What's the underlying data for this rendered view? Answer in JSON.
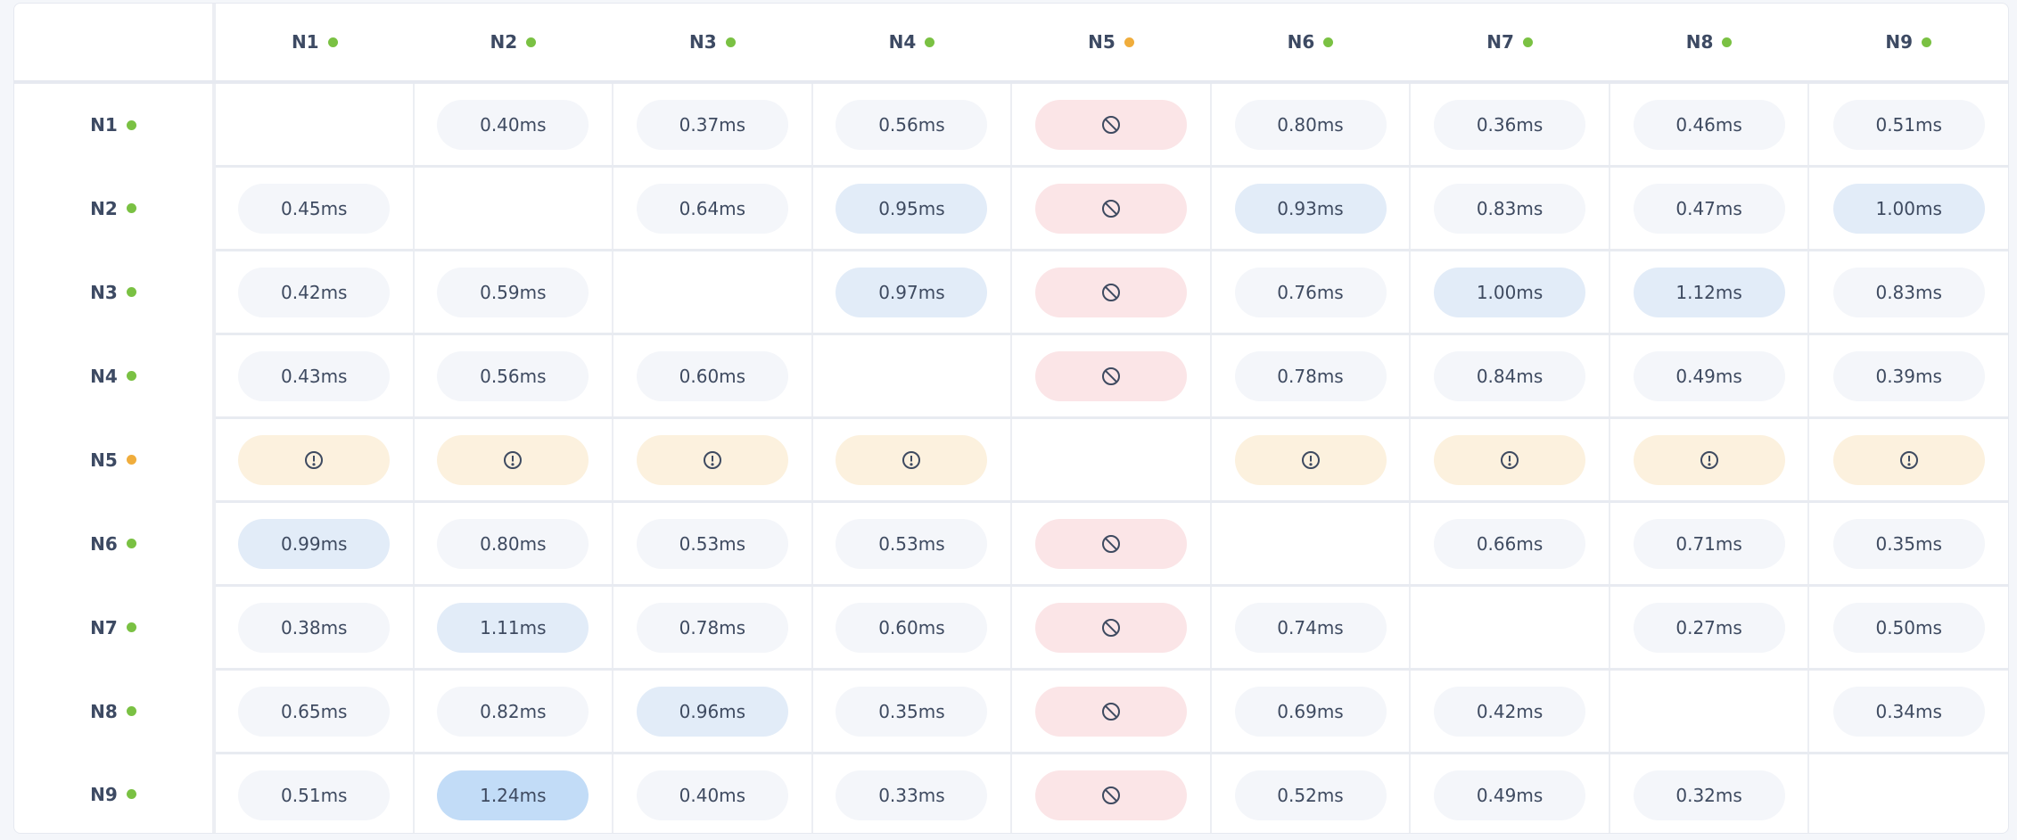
{
  "colors": {
    "online": "#7ac143",
    "degraded": "#f0ad3c",
    "normal_bg": "#f4f6fa",
    "elevated_bg": "#e2ecf8",
    "high_bg": "#c2dcf7",
    "blocked_bg": "#fbe5e7",
    "warning_bg": "#fcf1de"
  },
  "nodes": [
    {
      "label": "N1",
      "status": "online"
    },
    {
      "label": "N2",
      "status": "online"
    },
    {
      "label": "N3",
      "status": "online"
    },
    {
      "label": "N4",
      "status": "online"
    },
    {
      "label": "N5",
      "status": "degraded"
    },
    {
      "label": "N6",
      "status": "online"
    },
    {
      "label": "N7",
      "status": "online"
    },
    {
      "label": "N8",
      "status": "online"
    },
    {
      "label": "N9",
      "status": "online"
    }
  ],
  "matrix": [
    [
      {
        "s": "self"
      },
      {
        "v": "0.40ms",
        "s": "normal"
      },
      {
        "v": "0.37ms",
        "s": "normal"
      },
      {
        "v": "0.56ms",
        "s": "normal"
      },
      {
        "s": "blocked",
        "icon": "blocked-icon"
      },
      {
        "v": "0.80ms",
        "s": "normal"
      },
      {
        "v": "0.36ms",
        "s": "normal"
      },
      {
        "v": "0.46ms",
        "s": "normal"
      },
      {
        "v": "0.51ms",
        "s": "normal"
      }
    ],
    [
      {
        "v": "0.45ms",
        "s": "normal"
      },
      {
        "s": "self"
      },
      {
        "v": "0.64ms",
        "s": "normal"
      },
      {
        "v": "0.95ms",
        "s": "elevated"
      },
      {
        "s": "blocked",
        "icon": "blocked-icon"
      },
      {
        "v": "0.93ms",
        "s": "elevated"
      },
      {
        "v": "0.83ms",
        "s": "normal"
      },
      {
        "v": "0.47ms",
        "s": "normal"
      },
      {
        "v": "1.00ms",
        "s": "elevated"
      }
    ],
    [
      {
        "v": "0.42ms",
        "s": "normal"
      },
      {
        "v": "0.59ms",
        "s": "normal"
      },
      {
        "s": "self"
      },
      {
        "v": "0.97ms",
        "s": "elevated"
      },
      {
        "s": "blocked",
        "icon": "blocked-icon"
      },
      {
        "v": "0.76ms",
        "s": "normal"
      },
      {
        "v": "1.00ms",
        "s": "elevated"
      },
      {
        "v": "1.12ms",
        "s": "elevated"
      },
      {
        "v": "0.83ms",
        "s": "normal"
      }
    ],
    [
      {
        "v": "0.43ms",
        "s": "normal"
      },
      {
        "v": "0.56ms",
        "s": "normal"
      },
      {
        "v": "0.60ms",
        "s": "normal"
      },
      {
        "s": "self"
      },
      {
        "s": "blocked",
        "icon": "blocked-icon"
      },
      {
        "v": "0.78ms",
        "s": "normal"
      },
      {
        "v": "0.84ms",
        "s": "normal"
      },
      {
        "v": "0.49ms",
        "s": "normal"
      },
      {
        "v": "0.39ms",
        "s": "normal"
      }
    ],
    [
      {
        "s": "warning",
        "icon": "warning-icon"
      },
      {
        "s": "warning",
        "icon": "warning-icon"
      },
      {
        "s": "warning",
        "icon": "warning-icon"
      },
      {
        "s": "warning",
        "icon": "warning-icon"
      },
      {
        "s": "self"
      },
      {
        "s": "warning",
        "icon": "warning-icon"
      },
      {
        "s": "warning",
        "icon": "warning-icon"
      },
      {
        "s": "warning",
        "icon": "warning-icon"
      },
      {
        "s": "warning",
        "icon": "warning-icon"
      }
    ],
    [
      {
        "v": "0.99ms",
        "s": "elevated"
      },
      {
        "v": "0.80ms",
        "s": "normal"
      },
      {
        "v": "0.53ms",
        "s": "normal"
      },
      {
        "v": "0.53ms",
        "s": "normal"
      },
      {
        "s": "blocked",
        "icon": "blocked-icon"
      },
      {
        "s": "self"
      },
      {
        "v": "0.66ms",
        "s": "normal"
      },
      {
        "v": "0.71ms",
        "s": "normal"
      },
      {
        "v": "0.35ms",
        "s": "normal"
      }
    ],
    [
      {
        "v": "0.38ms",
        "s": "normal"
      },
      {
        "v": "1.11ms",
        "s": "elevated"
      },
      {
        "v": "0.78ms",
        "s": "normal"
      },
      {
        "v": "0.60ms",
        "s": "normal"
      },
      {
        "s": "blocked",
        "icon": "blocked-icon"
      },
      {
        "v": "0.74ms",
        "s": "normal"
      },
      {
        "s": "self"
      },
      {
        "v": "0.27ms",
        "s": "normal"
      },
      {
        "v": "0.50ms",
        "s": "normal"
      }
    ],
    [
      {
        "v": "0.65ms",
        "s": "normal"
      },
      {
        "v": "0.82ms",
        "s": "normal"
      },
      {
        "v": "0.96ms",
        "s": "elevated"
      },
      {
        "v": "0.35ms",
        "s": "normal"
      },
      {
        "s": "blocked",
        "icon": "blocked-icon"
      },
      {
        "v": "0.69ms",
        "s": "normal"
      },
      {
        "v": "0.42ms",
        "s": "normal"
      },
      {
        "s": "self"
      },
      {
        "v": "0.34ms",
        "s": "normal"
      }
    ],
    [
      {
        "v": "0.51ms",
        "s": "normal"
      },
      {
        "v": "1.24ms",
        "s": "high"
      },
      {
        "v": "0.40ms",
        "s": "normal"
      },
      {
        "v": "0.33ms",
        "s": "normal"
      },
      {
        "s": "blocked",
        "icon": "blocked-icon"
      },
      {
        "v": "0.52ms",
        "s": "normal"
      },
      {
        "v": "0.49ms",
        "s": "normal"
      },
      {
        "v": "0.32ms",
        "s": "normal"
      },
      {
        "s": "self"
      }
    ]
  ]
}
